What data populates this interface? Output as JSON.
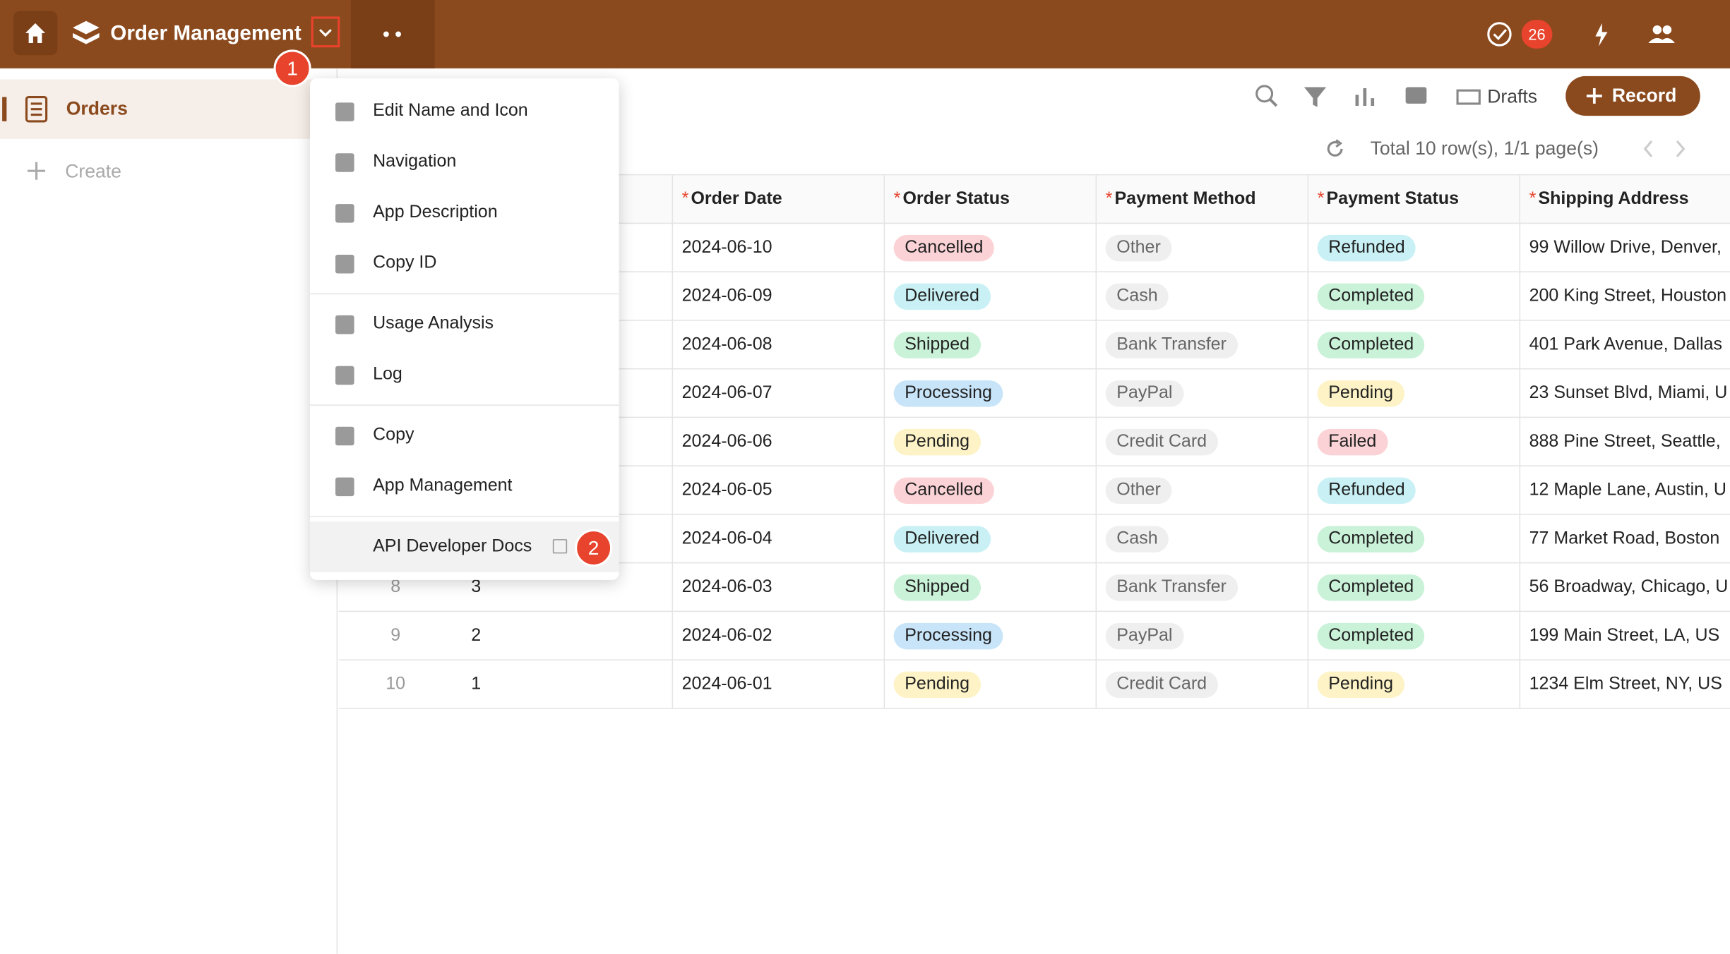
{
  "header": {
    "title": "Order Management",
    "notification_count": "26"
  },
  "sidebar": {
    "items": [
      "Orders"
    ],
    "create": "Create"
  },
  "toolbar": {
    "drafts": "Drafts",
    "record": "Record",
    "pagination": "Total 10 row(s), 1/1 page(s)"
  },
  "menu": {
    "groups": [
      [
        "Edit Name and Icon",
        "Navigation",
        "App Description",
        "Copy ID"
      ],
      [
        "Usage Analysis",
        "Log"
      ],
      [
        "Copy",
        "App Management"
      ],
      [
        "API Developer Docs"
      ]
    ]
  },
  "annotations": [
    "1",
    "2"
  ],
  "table": {
    "required_mark": "*",
    "method_tag_color": "#efefef",
    "columns": [
      "Order Date",
      "Order Status",
      "Payment Method",
      "Payment Status",
      "Shipping Address"
    ],
    "rows": [
      {
        "no": null,
        "id": null,
        "order_date": "2024-06-10",
        "order_status": {
          "text": "Cancelled",
          "color": "#fbd3d6"
        },
        "payment_method": "Other",
        "payment_status": {
          "text": "Refunded",
          "color": "#c9f1f5"
        },
        "shipping_address": "99 Willow Drive, Denver,"
      },
      {
        "no": null,
        "id": null,
        "order_date": "2024-06-09",
        "order_status": {
          "text": "Delivered",
          "color": "#c9f1f5"
        },
        "payment_method": "Cash",
        "payment_status": {
          "text": "Completed",
          "color": "#c9f2d8"
        },
        "shipping_address": "200 King Street, Houston"
      },
      {
        "no": null,
        "id": null,
        "order_date": "2024-06-08",
        "order_status": {
          "text": "Shipped",
          "color": "#c9f2d8"
        },
        "payment_method": "Bank Transfer",
        "payment_status": {
          "text": "Completed",
          "color": "#c9f2d8"
        },
        "shipping_address": "401 Park Avenue, Dallas"
      },
      {
        "no": null,
        "id": null,
        "order_date": "2024-06-07",
        "order_status": {
          "text": "Processing",
          "color": "#c8e4f9"
        },
        "payment_method": "PayPal",
        "payment_status": {
          "text": "Pending",
          "color": "#fdf3c6"
        },
        "shipping_address": "23 Sunset Blvd, Miami, U"
      },
      {
        "no": null,
        "id": null,
        "order_date": "2024-06-06",
        "order_status": {
          "text": "Pending",
          "color": "#fdf3c6"
        },
        "payment_method": "Credit Card",
        "payment_status": {
          "text": "Failed",
          "color": "#fbd3d6"
        },
        "shipping_address": "888 Pine Street, Seattle,"
      },
      {
        "no": null,
        "id": null,
        "order_date": "2024-06-05",
        "order_status": {
          "text": "Cancelled",
          "color": "#fbd3d6"
        },
        "payment_method": "Other",
        "payment_status": {
          "text": "Refunded",
          "color": "#c9f1f5"
        },
        "shipping_address": "12 Maple Lane, Austin, U"
      },
      {
        "no": null,
        "id": null,
        "order_date": "2024-06-04",
        "order_status": {
          "text": "Delivered",
          "color": "#c9f1f5"
        },
        "payment_method": "Cash",
        "payment_status": {
          "text": "Completed",
          "color": "#c9f2d8"
        },
        "shipping_address": "77 Market Road, Boston"
      },
      {
        "no": "8",
        "id": "3",
        "order_date": "2024-06-03",
        "order_status": {
          "text": "Shipped",
          "color": "#c9f2d8"
        },
        "payment_method": "Bank Transfer",
        "payment_status": {
          "text": "Completed",
          "color": "#c9f2d8"
        },
        "shipping_address": "56 Broadway, Chicago, U"
      },
      {
        "no": "9",
        "id": "2",
        "order_date": "2024-06-02",
        "order_status": {
          "text": "Processing",
          "color": "#c8e4f9"
        },
        "payment_method": "PayPal",
        "payment_status": {
          "text": "Completed",
          "color": "#c9f2d8"
        },
        "shipping_address": "199 Main Street, LA, US"
      },
      {
        "no": "10",
        "id": "1",
        "order_date": "2024-06-01",
        "order_status": {
          "text": "Pending",
          "color": "#fdf3c6"
        },
        "payment_method": "Credit Card",
        "payment_status": {
          "text": "Pending",
          "color": "#fdf3c6"
        },
        "shipping_address": "1234 Elm Street, NY, US"
      }
    ]
  }
}
